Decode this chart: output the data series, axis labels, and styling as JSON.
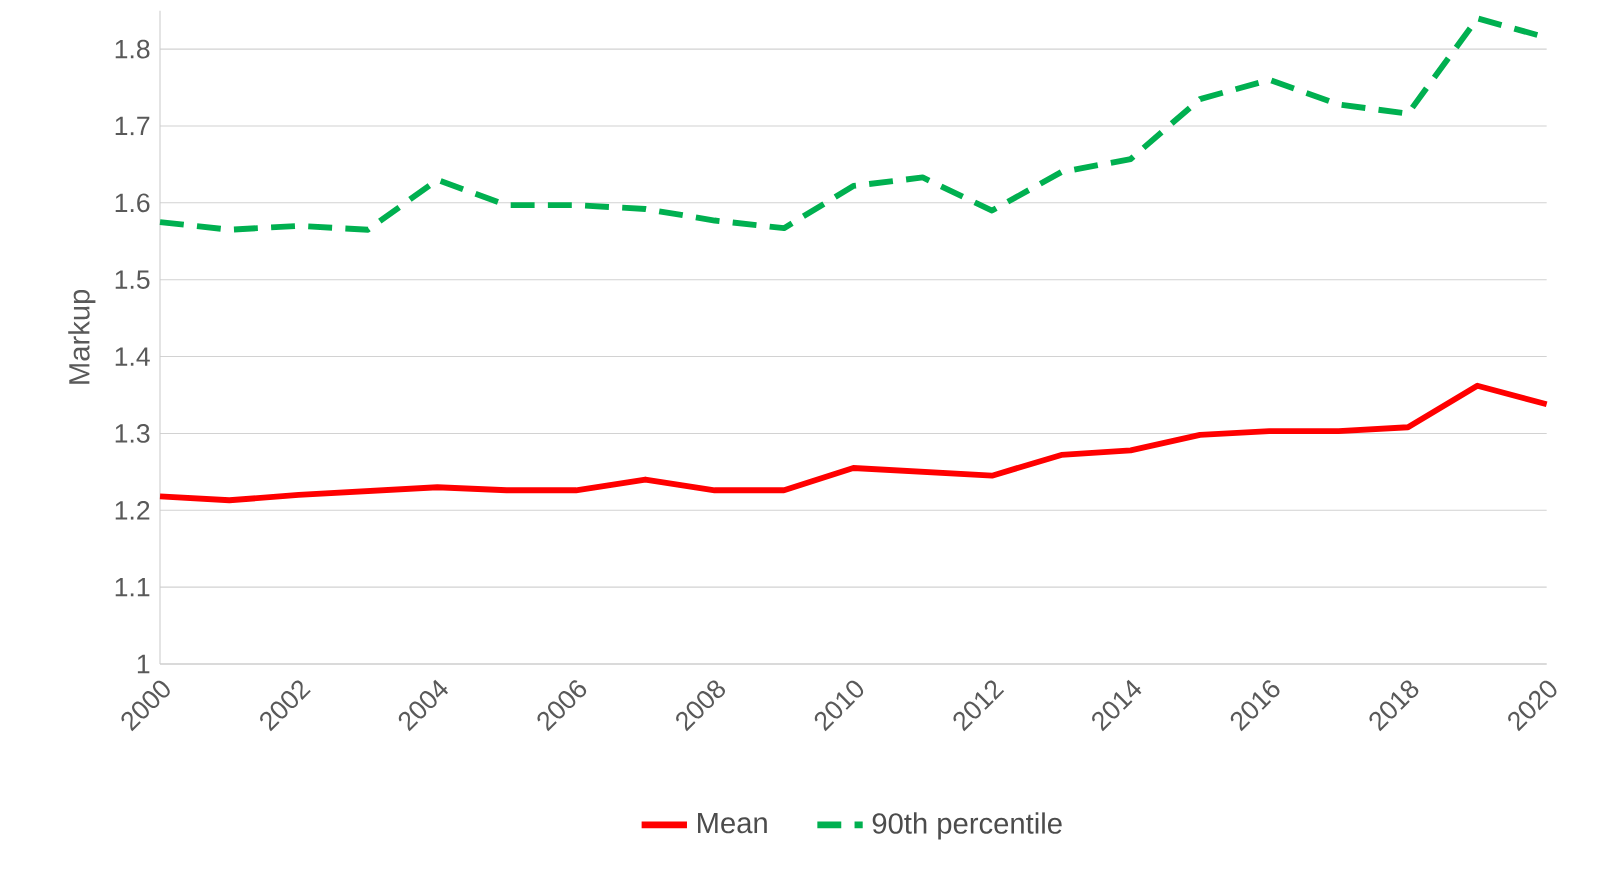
{
  "chart_data": {
    "type": "line",
    "ylabel": "Markup",
    "x": [
      2000,
      2001,
      2002,
      2003,
      2004,
      2005,
      2006,
      2007,
      2008,
      2009,
      2010,
      2011,
      2012,
      2013,
      2014,
      2015,
      2016,
      2017,
      2018,
      2019,
      2020
    ],
    "series": [
      {
        "name": "Mean",
        "color": "#ff0000",
        "line_style": "solid",
        "values": [
          1.218,
          1.213,
          1.22,
          1.225,
          1.23,
          1.226,
          1.226,
          1.24,
          1.226,
          1.226,
          1.255,
          1.25,
          1.245,
          1.272,
          1.278,
          1.298,
          1.303,
          1.303,
          1.308,
          1.362,
          1.338
        ]
      },
      {
        "name": "90th percentile",
        "color": "#00b050",
        "line_style": "dashed",
        "values": [
          1.575,
          1.565,
          1.57,
          1.565,
          1.63,
          1.597,
          1.597,
          1.592,
          1.577,
          1.567,
          1.622,
          1.633,
          1.59,
          1.64,
          1.657,
          1.735,
          1.76,
          1.728,
          1.716,
          1.84,
          1.815
        ]
      }
    ],
    "xlim": [
      2000,
      2020
    ],
    "xticks": [
      2000,
      2002,
      2004,
      2006,
      2008,
      2010,
      2012,
      2014,
      2016,
      2018,
      2020
    ],
    "ylim": [
      1,
      1.85
    ],
    "yticks": [
      1,
      1.1,
      1.2,
      1.3,
      1.4,
      1.5,
      1.6,
      1.7,
      1.8
    ],
    "grid": "y",
    "legend": "bottom",
    "marker": "none"
  }
}
